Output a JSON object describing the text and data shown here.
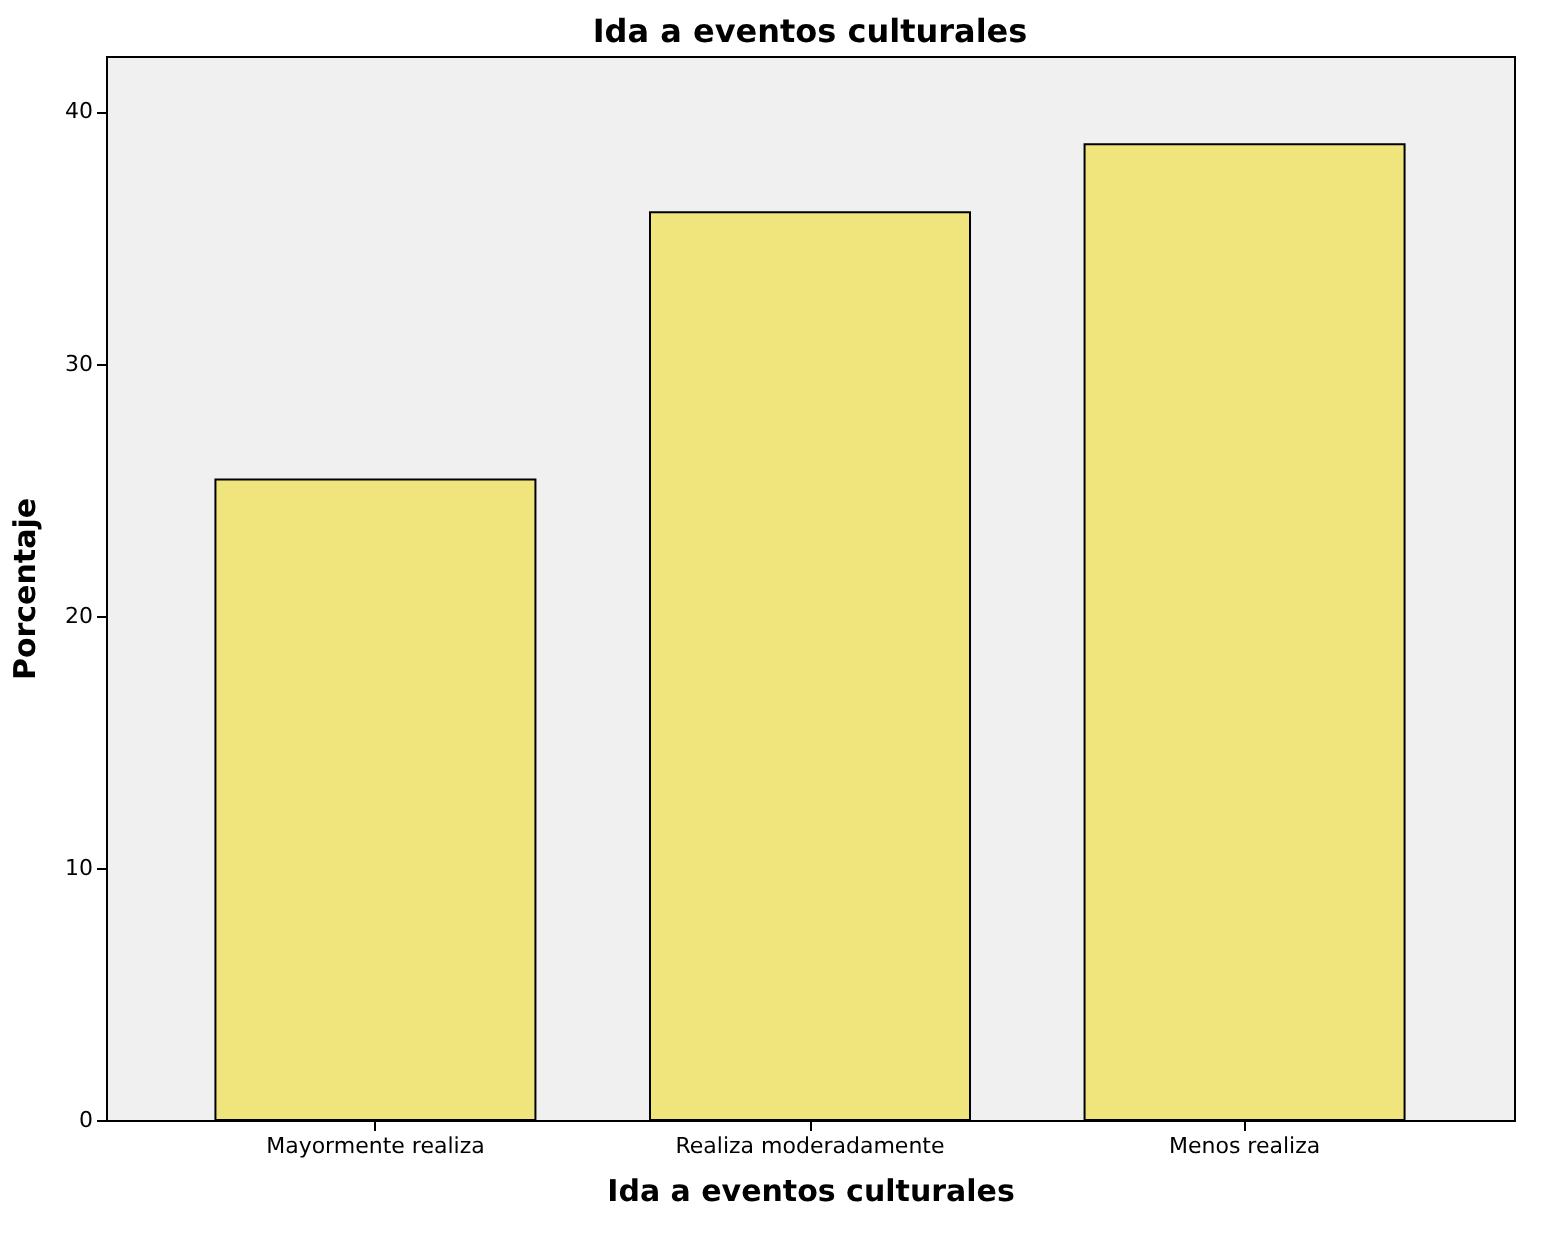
{
  "chart_data": {
    "type": "bar",
    "title": "Ida a eventos culturales",
    "xlabel": "Ida a eventos culturales",
    "ylabel": "Porcentaje",
    "categories": [
      "Mayormente realiza",
      "Realiza moderadamente",
      "Menos realiza"
    ],
    "values": [
      25.4,
      36.0,
      38.7
    ],
    "color": "#f0e47c",
    "ylim": [
      0,
      42.2
    ],
    "yticks": [
      0,
      10,
      20,
      30,
      40
    ],
    "grid": false
  }
}
